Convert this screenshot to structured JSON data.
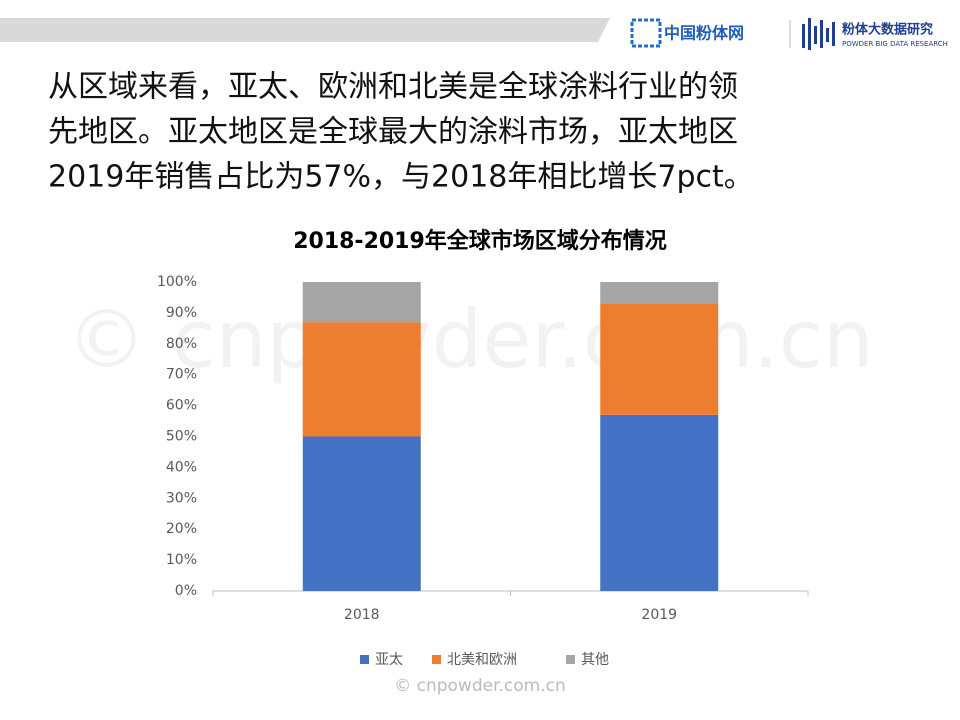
{
  "header": {
    "logo_main": "中国粉体网",
    "logo_sub": "粉体大数据研究",
    "logo_sub_en": "POWDER BIG DATA RESEARCH"
  },
  "paragraph": [
    "从区域来看，亚太、欧洲和北美是全球涂料行业的领",
    "先地区。亚太地区是全球最大的涂料市场，亚太地区",
    "2019年销售占比为57%，与2018年相比增长7pct。"
  ],
  "watermark": "© cnpowder.com.cn",
  "footer_watermark": "© cnpowder.com.cn",
  "chart_data": {
    "type": "stacked_bar",
    "title": "2018-2019年全球市场区域分布情况",
    "categories": [
      "2018",
      "2019"
    ],
    "series": [
      {
        "name": "亚太",
        "color": "#4472c4",
        "values": [
          50,
          57
        ]
      },
      {
        "name": "北美和欧洲",
        "color": "#ed7d31",
        "values": [
          37,
          36
        ]
      },
      {
        "name": "其他",
        "color": "#a5a5a5",
        "values": [
          13,
          7
        ]
      }
    ],
    "ylim": [
      0,
      100
    ],
    "yticks": [
      {
        "value": 0,
        "label": "0%"
      },
      {
        "value": 10,
        "label": "10%"
      },
      {
        "value": 20,
        "label": "20%"
      },
      {
        "value": 30,
        "label": "30%"
      },
      {
        "value": 40,
        "label": "40%"
      },
      {
        "value": 50,
        "label": "50%"
      },
      {
        "value": 60,
        "label": "60%"
      },
      {
        "value": 70,
        "label": "70%"
      },
      {
        "value": 80,
        "label": "80%"
      },
      {
        "value": 90,
        "label": "90%"
      },
      {
        "value": 100,
        "label": "100%"
      }
    ],
    "grid": false,
    "legend": "bottom"
  }
}
